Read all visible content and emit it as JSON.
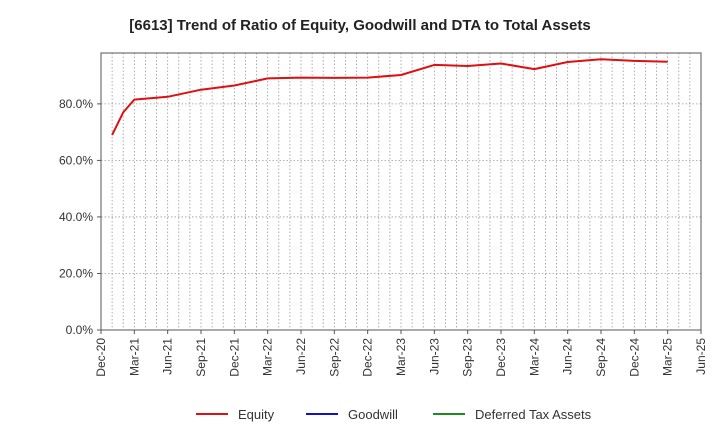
{
  "chart_data": {
    "type": "line",
    "title": "[6613]  Trend of Ratio of Equity, Goodwill and DTA to Total Assets",
    "xlabel": "",
    "ylabel": "",
    "ylim": [
      0,
      98
    ],
    "y_ticks": [
      "0.0%",
      "20.0%",
      "40.0%",
      "60.0%",
      "80.0%"
    ],
    "y_tick_values": [
      0,
      20,
      40,
      60,
      80
    ],
    "x_tick_labels": [
      "Dec-20",
      "Mar-21",
      "Jun-21",
      "Sep-21",
      "Dec-21",
      "Mar-22",
      "Jun-22",
      "Sep-22",
      "Dec-22",
      "Mar-23",
      "Jun-23",
      "Sep-23",
      "Dec-23",
      "Mar-24",
      "Jun-24",
      "Sep-24",
      "Dec-24",
      "Mar-25",
      "Jun-25"
    ],
    "grid": true,
    "legend_position": "bottom",
    "series": [
      {
        "name": "Equity",
        "color": "#dd1111",
        "x": [
          "Jan-21",
          "Feb-21",
          "Mar-21",
          "Jun-21",
          "Sep-21",
          "Dec-21",
          "Mar-22",
          "Jun-22",
          "Sep-22",
          "Dec-22",
          "Mar-23",
          "Jun-23",
          "Sep-23",
          "Dec-23",
          "Mar-24",
          "Jun-24",
          "Sep-24",
          "Dec-24",
          "Mar-25"
        ],
        "values": [
          69.0,
          77.0,
          81.5,
          82.5,
          85.0,
          86.5,
          89.0,
          89.3,
          89.2,
          89.3,
          90.2,
          93.8,
          93.4,
          94.3,
          92.3,
          94.8,
          95.8,
          95.2,
          94.9
        ]
      },
      {
        "name": "Goodwill",
        "color": "#1111cc",
        "x": [],
        "values": []
      },
      {
        "name": "Deferred Tax Assets",
        "color": "#228822",
        "x": [],
        "values": []
      }
    ]
  }
}
